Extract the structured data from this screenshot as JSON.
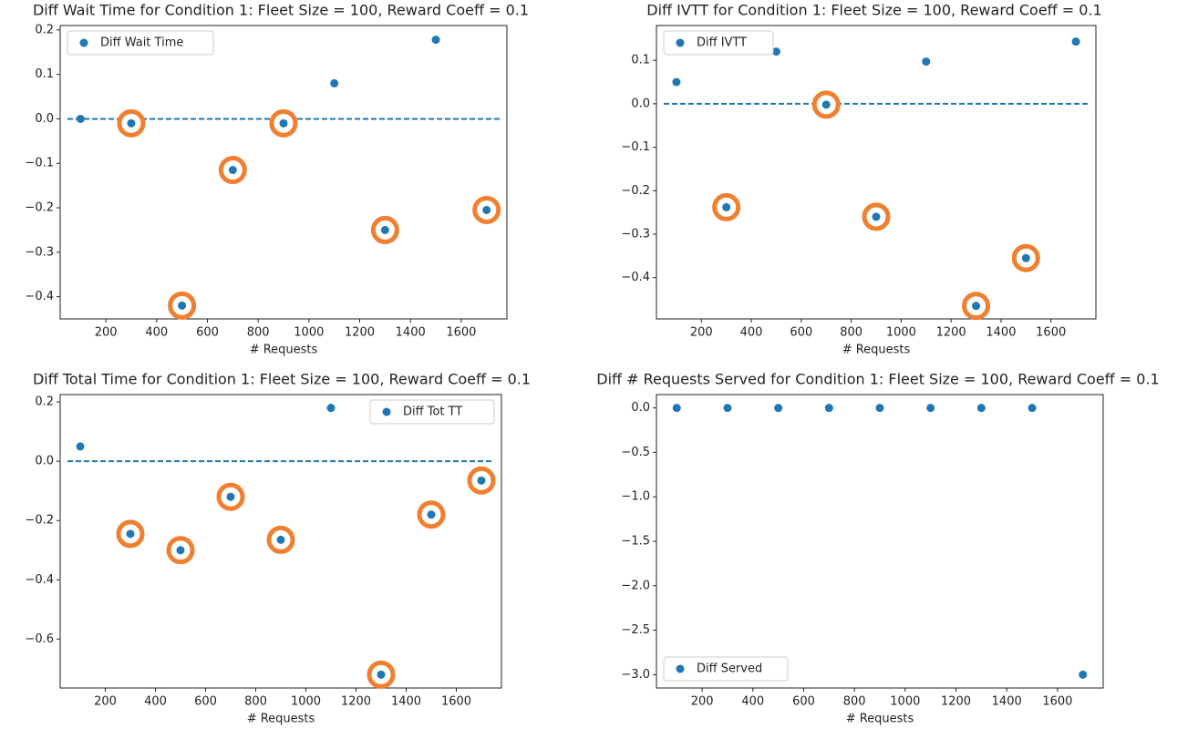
{
  "chart_data": [
    {
      "type": "scatter",
      "title": "Diff Wait Time for Condition 1: Fleet Size = 100, Reward Coeff = 0.1",
      "x_label": "# Requests",
      "x": [
        100,
        300,
        500,
        700,
        900,
        1100,
        1300,
        1500,
        1700
      ],
      "series": [
        {
          "name": "Diff Wait Time",
          "color": "#1f77b4",
          "values": [
            0.0,
            -0.01,
            -0.42,
            -0.115,
            -0.01,
            0.08,
            -0.25,
            0.178,
            -0.205
          ]
        }
      ],
      "highlighted": [
        false,
        true,
        true,
        true,
        true,
        false,
        true,
        false,
        true
      ],
      "highlight_color": "#f07f30",
      "hline": 0,
      "hline_style": "dashed",
      "xlim": [
        20,
        1780
      ],
      "xticks": [
        200,
        400,
        600,
        800,
        1000,
        1200,
        1400,
        1600
      ],
      "ylim": [
        -0.45,
        0.21
      ],
      "yticks": [
        {
          "value": 0.2,
          "label": "0.2"
        },
        {
          "value": 0.1,
          "label": "0.1"
        },
        {
          "value": 0,
          "label": "0.0"
        },
        {
          "value": -0.1,
          "label": "−0.1"
        },
        {
          "value": -0.2,
          "label": "−0.2"
        },
        {
          "value": -0.3,
          "label": "−0.3"
        },
        {
          "value": -0.4,
          "label": "−0.4"
        }
      ],
      "legend": "upper left"
    },
    {
      "type": "scatter",
      "title": "Diff IVTT for Condition 1: Fleet Size = 100, Reward Coeff = 0.1",
      "x_label": "# Requests",
      "x": [
        100,
        300,
        500,
        700,
        900,
        1100,
        1300,
        1500,
        1700
      ],
      "series": [
        {
          "name": "Diff IVTT",
          "color": "#1f77b4",
          "values": [
            0.05,
            -0.238,
            0.12,
            -0.002,
            -0.26,
            0.097,
            -0.465,
            -0.355,
            0.143
          ]
        }
      ],
      "highlighted": [
        false,
        true,
        false,
        true,
        true,
        false,
        true,
        true,
        false
      ],
      "highlight_color": "#f07f30",
      "hline": 0,
      "hline_style": "dashed",
      "xlim": [
        20,
        1780
      ],
      "xticks": [
        200,
        400,
        600,
        800,
        1000,
        1200,
        1400,
        1600
      ],
      "ylim": [
        -0.495,
        0.18
      ],
      "yticks": [
        {
          "value": 0.1,
          "label": "0.1"
        },
        {
          "value": 0,
          "label": "0.0"
        },
        {
          "value": -0.1,
          "label": "−0.1"
        },
        {
          "value": -0.2,
          "label": "−0.2"
        },
        {
          "value": -0.3,
          "label": "−0.3"
        },
        {
          "value": -0.4,
          "label": "−0.4"
        }
      ],
      "legend": "upper left"
    },
    {
      "type": "scatter",
      "title": "Diff Total Time for Condition 1: Fleet Size = 100, Reward Coeff = 0.1",
      "x_label": "# Requests",
      "x": [
        100,
        300,
        500,
        700,
        900,
        1100,
        1300,
        1500,
        1700
      ],
      "series": [
        {
          "name": "Diff Tot TT",
          "color": "#1f77b4",
          "values": [
            0.05,
            -0.245,
            -0.3,
            -0.12,
            -0.265,
            0.18,
            -0.72,
            -0.18,
            -0.065
          ]
        }
      ],
      "highlighted": [
        false,
        true,
        true,
        true,
        true,
        false,
        true,
        true,
        true
      ],
      "highlight_color": "#f07f30",
      "hline": 0,
      "hline_style": "dashed",
      "xlim": [
        20,
        1780
      ],
      "xticks": [
        200,
        400,
        600,
        800,
        1000,
        1200,
        1400,
        1600
      ],
      "ylim": [
        -0.765,
        0.225
      ],
      "yticks": [
        {
          "value": 0.2,
          "label": "0.2"
        },
        {
          "value": 0,
          "label": "0.0"
        },
        {
          "value": -0.2,
          "label": "−0.2"
        },
        {
          "value": -0.4,
          "label": "−0.4"
        },
        {
          "value": -0.6,
          "label": "−0.6"
        }
      ],
      "legend": "upper right"
    },
    {
      "type": "scatter",
      "title": "Diff # Requests Served for Condition 1: Fleet Size = 100, Reward Coeff = 0.1",
      "x_label": "# Requests",
      "x": [
        100,
        300,
        500,
        700,
        900,
        1100,
        1300,
        1500,
        1700
      ],
      "series": [
        {
          "name": "Diff Served",
          "color": "#1f77b4",
          "values": [
            0,
            0,
            0,
            0,
            0,
            0,
            0,
            0,
            -3
          ]
        }
      ],
      "xlim": [
        20,
        1780
      ],
      "xticks": [
        200,
        400,
        600,
        800,
        1000,
        1200,
        1400,
        1600
      ],
      "ylim": [
        -3.15,
        0.15
      ],
      "yticks": [
        {
          "value": 0,
          "label": "0.0"
        },
        {
          "value": -0.5,
          "label": "−0.5"
        },
        {
          "value": -1,
          "label": "−1.0"
        },
        {
          "value": -1.5,
          "label": "−1.5"
        },
        {
          "value": -2,
          "label": "−2.0"
        },
        {
          "value": -2.5,
          "label": "−2.5"
        },
        {
          "value": -3,
          "label": "−3.0"
        }
      ],
      "legend": "lower left"
    }
  ]
}
